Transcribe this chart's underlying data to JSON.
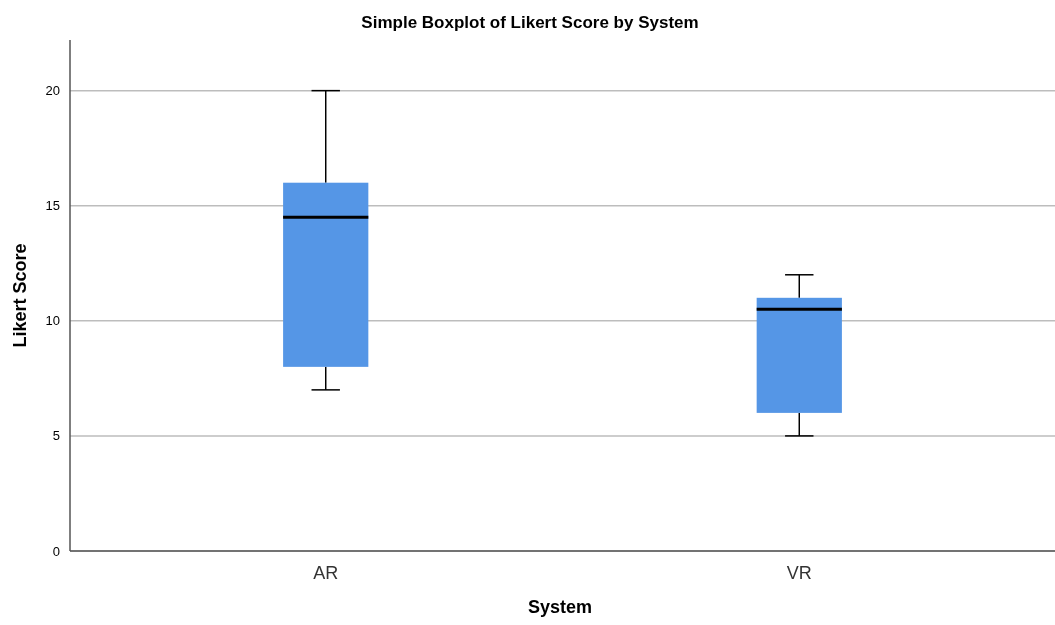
{
  "chart_data": {
    "type": "box",
    "title": "Simple Boxplot of Likert Score by System",
    "xlabel": "System",
    "ylabel": "Likert Score",
    "categories": [
      "AR",
      "VR"
    ],
    "boxes": [
      {
        "low": 7,
        "q1": 8,
        "median": 14.5,
        "q3": 16,
        "high": 20
      },
      {
        "low": 5,
        "q1": 6,
        "median": 10.5,
        "q3": 11,
        "high": 12
      }
    ],
    "color": "#5596e6",
    "ylim": [
      0,
      22.2
    ],
    "yticks": [
      0,
      5,
      10,
      15,
      20
    ],
    "grid": "y"
  }
}
